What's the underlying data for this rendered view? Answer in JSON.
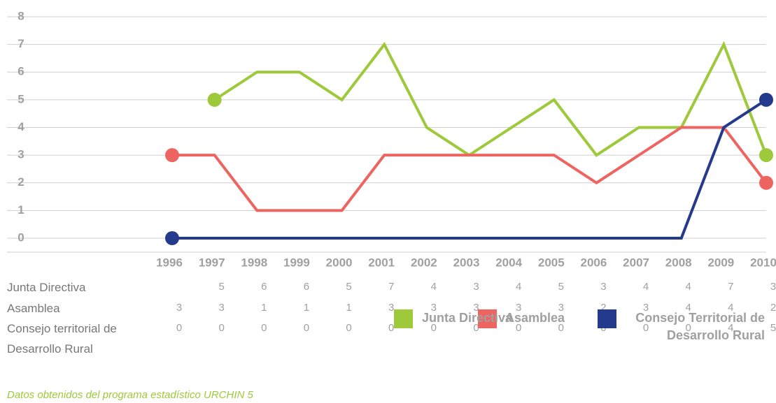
{
  "chart_data": {
    "type": "line",
    "categories": [
      "1996",
      "1997",
      "1998",
      "1999",
      "2000",
      "2001",
      "2002",
      "2003",
      "2004",
      "2005",
      "2006",
      "2007",
      "2008",
      "2009",
      "2010"
    ],
    "series": [
      {
        "name": "Junta Directiva",
        "color": "#9dc93b",
        "values": [
          null,
          5,
          6,
          6,
          5,
          7,
          4,
          3,
          4,
          5,
          3,
          4,
          4,
          7,
          3
        ]
      },
      {
        "name": "Asamblea",
        "color": "#ee6461",
        "values": [
          3,
          3,
          1,
          1,
          1,
          3,
          3,
          3,
          3,
          3,
          2,
          3,
          4,
          4,
          2
        ]
      },
      {
        "name": "Consejo Territorial de Desarrollo Rural",
        "color": "#243a8c",
        "values": [
          0,
          0,
          0,
          0,
          0,
          0,
          0,
          0,
          0,
          0,
          0,
          0,
          0,
          4,
          5
        ]
      }
    ],
    "table_labels": [
      "Junta Directiva",
      "Asamblea",
      "Consejo territorial de Desarrollo Rural"
    ],
    "ylim": [
      0,
      8
    ],
    "yticks": [
      0,
      1,
      2,
      3,
      4,
      5,
      6,
      7,
      8
    ],
    "grid": true,
    "note": "Datos obtenidos del programa estadístico URCHIN 5"
  }
}
